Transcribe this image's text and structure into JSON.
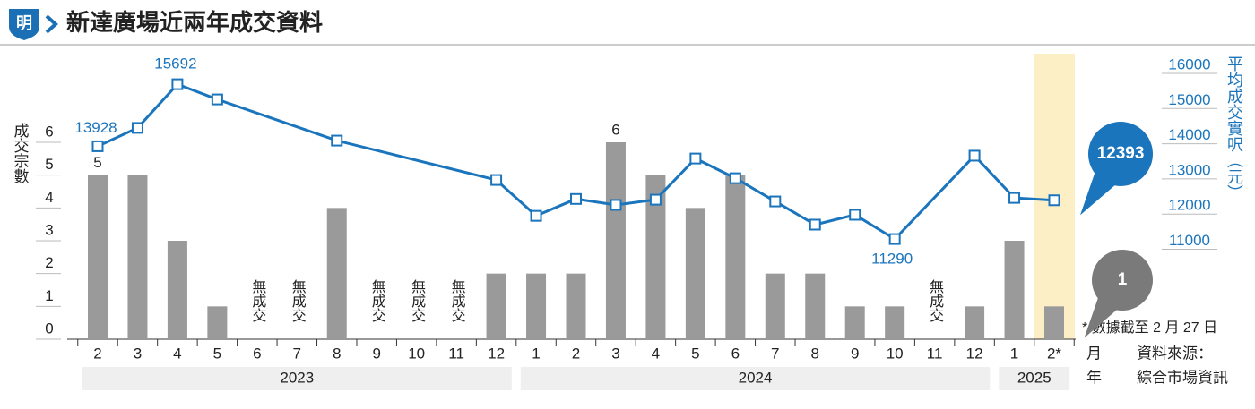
{
  "header": {
    "logo": "明",
    "title": "新達廣場近兩年成交資料"
  },
  "chart_data": {
    "type": "combo",
    "groups": [
      {
        "name": "2023",
        "categories": [
          "2",
          "3",
          "4",
          "5",
          "6",
          "7",
          "8",
          "9",
          "10",
          "11",
          "12"
        ]
      },
      {
        "name": "2024",
        "categories": [
          "1",
          "2",
          "3",
          "4",
          "5",
          "6",
          "7",
          "8",
          "9",
          "10",
          "11",
          "12"
        ]
      },
      {
        "name": "2025",
        "categories": [
          "1",
          "2*"
        ]
      }
    ],
    "series": [
      {
        "name": "成交宗數",
        "type": "bar",
        "axis": "y",
        "color": "#9a9a9a",
        "values": [
          5,
          5,
          3,
          1,
          0,
          0,
          4,
          0,
          0,
          0,
          2,
          2,
          2,
          6,
          5,
          4,
          5,
          2,
          2,
          1,
          1,
          0,
          1,
          3,
          1
        ],
        "value_labels": [
          "5",
          null,
          null,
          null,
          "無成交",
          "無成交",
          null,
          "無成交",
          "無成交",
          "無成交",
          null,
          null,
          null,
          "6",
          null,
          null,
          null,
          null,
          null,
          null,
          null,
          "無成交",
          null,
          null,
          "1"
        ]
      },
      {
        "name": "平均成交實呎（元）",
        "type": "line",
        "axis": "y2",
        "color": "#1b75bc",
        "values": [
          13928,
          14450,
          15692,
          15260,
          null,
          null,
          14090,
          null,
          null,
          null,
          12970,
          11950,
          12430,
          12260,
          12410,
          13580,
          13020,
          12360,
          11700,
          11980,
          11290,
          null,
          13660,
          12460,
          12393
        ],
        "value_labels": [
          "13928",
          null,
          "15692",
          null,
          null,
          null,
          null,
          null,
          null,
          null,
          null,
          null,
          null,
          null,
          null,
          null,
          null,
          null,
          null,
          null,
          "11290",
          null,
          null,
          null,
          "12393"
        ]
      }
    ],
    "ylim": [
      0,
      6
    ],
    "yticks": [
      0,
      1,
      2,
      3,
      4,
      5,
      6
    ],
    "y2lim": [
      11000,
      16000
    ],
    "y2ticks": [
      11000,
      12000,
      13000,
      14000,
      15000,
      16000
    ],
    "highlight_last": true,
    "highlight_color": "#fcefc6",
    "month_label": "月",
    "year_label": "年",
    "footnote": "* 數據截至 2 月 27 日",
    "source_label": "資料來源：",
    "source": "綜合市場資訊"
  }
}
